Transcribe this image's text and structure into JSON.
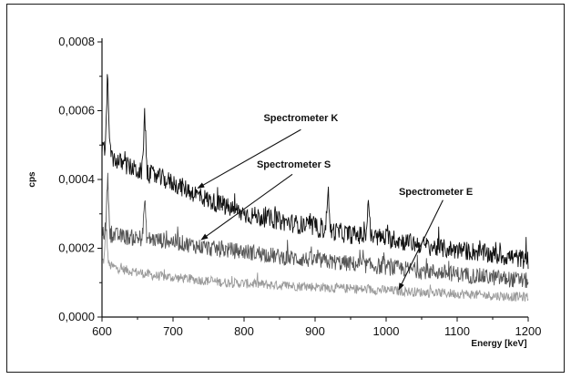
{
  "chart_data": {
    "type": "line",
    "title": "",
    "xlabel": "Energy [keV]",
    "ylabel": "cps",
    "xlim": [
      600,
      1200
    ],
    "ylim": [
      0,
      0.0008
    ],
    "x_ticks": [
      600,
      700,
      800,
      900,
      1000,
      1100,
      1200
    ],
    "x_tick_labels": [
      "600",
      "700",
      "800",
      "900",
      "1000",
      "1100",
      "1200"
    ],
    "y_ticks": [
      0,
      0.0002,
      0.0004,
      0.0006,
      0.0008
    ],
    "y_tick_labels": [
      "0,0000",
      "0,0002",
      "0,0004",
      "0,0006",
      "0,0008"
    ],
    "grid": false,
    "legend": "none",
    "series": [
      {
        "name": "Spectrometer K",
        "color": "#111111",
        "x": [
          600,
          610,
          625,
          650,
          675,
          700,
          725,
          750,
          775,
          800,
          825,
          850,
          875,
          900,
          925,
          950,
          975,
          1000,
          1025,
          1050,
          1075,
          1100,
          1125,
          1150,
          1175,
          1200
        ],
        "y": [
          0.00049,
          0.00047,
          0.00045,
          0.000425,
          0.00041,
          0.00039,
          0.000365,
          0.00034,
          0.00032,
          0.0003,
          0.00029,
          0.00028,
          0.00027,
          0.00026,
          0.00025,
          0.00024,
          0.000235,
          0.00023,
          0.00022,
          0.00021,
          0.0002,
          0.000195,
          0.00019,
          0.00018,
          0.000175,
          0.000165
        ],
        "peaks": [
          [
            608,
            0.0007
          ],
          [
            660,
            0.00059
          ],
          [
            918,
            0.00037
          ],
          [
            975,
            0.00034
          ]
        ]
      },
      {
        "name": "Spectrometer S",
        "color": "#555555",
        "x": [
          600,
          610,
          625,
          650,
          675,
          700,
          725,
          750,
          775,
          800,
          825,
          850,
          875,
          900,
          925,
          950,
          975,
          1000,
          1025,
          1050,
          1075,
          1100,
          1125,
          1150,
          1175,
          1200
        ],
        "y": [
          0.00025,
          0.00024,
          0.000235,
          0.00023,
          0.000225,
          0.00022,
          0.00021,
          0.0002,
          0.000195,
          0.00019,
          0.000185,
          0.000175,
          0.00017,
          0.000165,
          0.00016,
          0.000155,
          0.00015,
          0.000145,
          0.00014,
          0.000135,
          0.00013,
          0.000125,
          0.00012,
          0.000115,
          0.00011,
          0.000105
        ],
        "peaks": [
          [
            608,
            0.0004
          ],
          [
            660,
            0.00033
          ]
        ]
      },
      {
        "name": "Spectrometer E",
        "color": "#9a9a9a",
        "x": [
          600,
          610,
          625,
          650,
          675,
          700,
          725,
          750,
          775,
          800,
          825,
          850,
          875,
          900,
          925,
          950,
          975,
          1000,
          1025,
          1050,
          1075,
          1100,
          1125,
          1150,
          1175,
          1200
        ],
        "y": [
          0.000165,
          0.00015,
          0.00014,
          0.00013,
          0.00012,
          0.000115,
          0.00011,
          0.000105,
          0.0001,
          9.8e-05,
          9.5e-05,
          9.2e-05,
          9e-05,
          8.8e-05,
          8.5e-05,
          8.2e-05,
          8e-05,
          7.8e-05,
          7.5e-05,
          7.2e-05,
          7e-05,
          6.8e-05,
          6.5e-05,
          6.2e-05,
          6e-05,
          5.8e-05
        ],
        "peaks": [
          [
            606,
            0.00026
          ]
        ]
      }
    ],
    "annotations": [
      {
        "text": "Spectrometer K",
        "text_x": 880,
        "text_y": 0.00057,
        "arrow_from": [
          880,
          0.000545
        ],
        "arrow_to": [
          735,
          0.000375
        ]
      },
      {
        "text": "Spectrometer S",
        "text_x": 870,
        "text_y": 0.000435,
        "arrow_from": [
          868,
          0.000415
        ],
        "arrow_to": [
          740,
          0.000225
        ]
      },
      {
        "text": "Spectrometer E",
        "text_x": 1070,
        "text_y": 0.000355,
        "arrow_from": [
          1080,
          0.00034
        ],
        "arrow_to": [
          1018,
          8e-05
        ]
      }
    ]
  }
}
